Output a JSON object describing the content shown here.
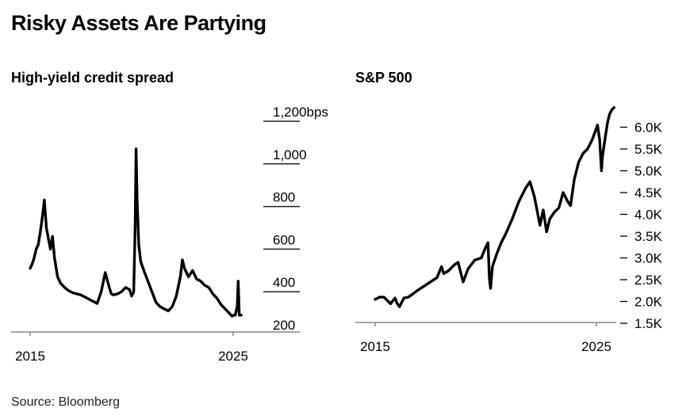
{
  "title": "Risky Assets Are Partying",
  "source": "Source: Bloomberg",
  "chart_data": [
    {
      "type": "line",
      "title": "High-yield credit spread",
      "x_ticks": [
        "2015",
        "2025"
      ],
      "y_ticks": [
        "1,200bps",
        "1,000",
        "800",
        "600",
        "400",
        "200"
      ],
      "ylim": [
        200,
        1200
      ],
      "grid": true,
      "series": [
        {
          "x": [
            2015.0,
            2015.1,
            2015.2,
            2015.3,
            2015.4,
            2015.5,
            2015.6,
            2015.7,
            2015.8,
            2015.9,
            2016.0,
            2016.1,
            2016.2,
            2016.35,
            2016.5,
            2016.7,
            2016.9,
            2017.1,
            2017.3,
            2017.5,
            2017.7,
            2017.9,
            2018.0,
            2018.1,
            2018.3,
            2018.5,
            2018.7,
            2018.9,
            2019.0,
            2019.1,
            2019.3,
            2019.5,
            2019.7,
            2019.9,
            2020.0,
            2020.1,
            2020.17,
            2020.22,
            2020.27,
            2020.35,
            2020.45,
            2020.6,
            2020.8,
            2021.0,
            2021.2,
            2021.4,
            2021.6,
            2021.8,
            2022.0,
            2022.2,
            2022.4,
            2022.5,
            2022.6,
            2022.8,
            2023.0,
            2023.2,
            2023.4,
            2023.6,
            2023.8,
            2024.0,
            2024.2,
            2024.4,
            2024.6,
            2024.8,
            2024.9,
            2024.95,
            2025.0,
            2025.1,
            2025.2,
            2025.25,
            2025.3,
            2025.4
          ],
          "y": [
            510,
            530,
            560,
            600,
            620,
            680,
            750,
            830,
            700,
            650,
            600,
            660,
            560,
            470,
            440,
            420,
            405,
            395,
            390,
            385,
            375,
            365,
            360,
            355,
            345,
            400,
            490,
            420,
            390,
            385,
            390,
            400,
            420,
            410,
            380,
            400,
            700,
            1070,
            830,
            620,
            540,
            500,
            450,
            400,
            350,
            330,
            320,
            310,
            330,
            380,
            470,
            550,
            510,
            470,
            500,
            460,
            450,
            430,
            420,
            390,
            370,
            340,
            320,
            300,
            290,
            285,
            290,
            290,
            330,
            450,
            290,
            290
          ]
        }
      ]
    },
    {
      "type": "line",
      "title": "S&P 500",
      "x_ticks": [
        "2015",
        "2025"
      ],
      "y_ticks": [
        "6.0K",
        "5.5K",
        "5.0K",
        "4.5K",
        "4.0K",
        "3.5K",
        "3.0K",
        "2.5K",
        "2.0K",
        "1.5K"
      ],
      "ylim": [
        1500,
        6400
      ],
      "grid": false,
      "series": [
        {
          "x": [
            2015.0,
            2015.2,
            2015.4,
            2015.6,
            2015.7,
            2015.9,
            2016.0,
            2016.1,
            2016.3,
            2016.5,
            2016.7,
            2016.9,
            2017.2,
            2017.5,
            2017.8,
            2018.0,
            2018.1,
            2018.3,
            2018.6,
            2018.75,
            2018.98,
            2019.2,
            2019.5,
            2019.8,
            2020.0,
            2020.1,
            2020.17,
            2020.22,
            2020.3,
            2020.5,
            2020.7,
            2020.9,
            2021.2,
            2021.5,
            2021.8,
            2022.0,
            2022.2,
            2022.45,
            2022.6,
            2022.75,
            2022.9,
            2023.1,
            2023.3,
            2023.5,
            2023.7,
            2023.83,
            2024.0,
            2024.2,
            2024.4,
            2024.6,
            2024.8,
            2024.95,
            2025.05,
            2025.15,
            2025.23,
            2025.27,
            2025.35,
            2025.5,
            2025.6,
            2025.7,
            2025.8
          ],
          "y": [
            2050,
            2100,
            2100,
            2000,
            1950,
            2080,
            1950,
            1880,
            2080,
            2100,
            2170,
            2250,
            2350,
            2450,
            2550,
            2800,
            2640,
            2700,
            2850,
            2900,
            2450,
            2750,
            2950,
            3000,
            3250,
            3350,
            2500,
            2300,
            2800,
            3100,
            3350,
            3550,
            3900,
            4300,
            4600,
            4750,
            4400,
            3750,
            4100,
            3600,
            3900,
            4050,
            4150,
            4500,
            4300,
            4200,
            4800,
            5200,
            5400,
            5500,
            5700,
            5900,
            6050,
            5700,
            5000,
            5300,
            5600,
            6100,
            6300,
            6400,
            6450
          ]
        }
      ]
    }
  ]
}
